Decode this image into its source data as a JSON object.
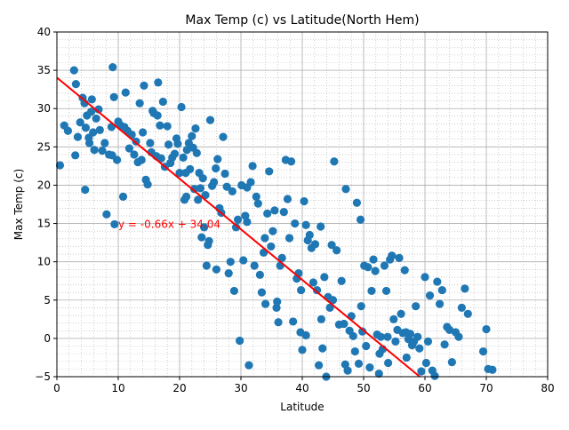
{
  "chart_data": {
    "type": "scatter",
    "title": "Max Temp (c) vs Latitude(North Hem)",
    "xlabel": "Latitude",
    "ylabel": "Max Temp (c)",
    "xlim": [
      0,
      80
    ],
    "ylim": [
      -5,
      40
    ],
    "xticks": [
      0,
      10,
      20,
      30,
      40,
      50,
      60,
      70,
      80
    ],
    "yticks": [
      -5,
      0,
      5,
      10,
      15,
      20,
      25,
      30,
      35,
      40
    ],
    "grid": true,
    "minor_grid": true,
    "colors": {
      "points": "#1f77b4",
      "regression": "#ff0000",
      "annotation": "#ff0000",
      "grid": "#b0b0b0"
    },
    "regression": {
      "slope": -0.66,
      "intercept": 34.04,
      "label": "y = -0.66x + 34.04",
      "label_x": 10,
      "label_y": 15
    },
    "points": [
      [
        0.5,
        22.6
      ],
      [
        1.2,
        27.8
      ],
      [
        1.8,
        27.1
      ],
      [
        2.8,
        35.0
      ],
      [
        3.1,
        33.2
      ],
      [
        3.4,
        26.3
      ],
      [
        3.0,
        23.9
      ],
      [
        3.8,
        28.2
      ],
      [
        4.2,
        31.4
      ],
      [
        4.5,
        30.7
      ],
      [
        4.6,
        19.4
      ],
      [
        4.7,
        27.5
      ],
      [
        4.9,
        29.1
      ],
      [
        5.2,
        26.2
      ],
      [
        5.3,
        25.5
      ],
      [
        5.6,
        29.6
      ],
      [
        5.7,
        31.2
      ],
      [
        5.9,
        26.9
      ],
      [
        6.1,
        24.6
      ],
      [
        6.4,
        28.7
      ],
      [
        6.8,
        29.9
      ],
      [
        7.0,
        27.2
      ],
      [
        7.4,
        24.5
      ],
      [
        7.8,
        25.5
      ],
      [
        8.1,
        16.2
      ],
      [
        8.5,
        24.0
      ],
      [
        8.9,
        27.6
      ],
      [
        9.0,
        23.9
      ],
      [
        9.1,
        35.4
      ],
      [
        9.3,
        31.5
      ],
      [
        9.4,
        14.9
      ],
      [
        9.8,
        23.3
      ],
      [
        10.0,
        28.3
      ],
      [
        10.4,
        27.8
      ],
      [
        10.8,
        18.5
      ],
      [
        11.0,
        27.6
      ],
      [
        11.2,
        32.1
      ],
      [
        11.5,
        27.1
      ],
      [
        11.8,
        24.8
      ],
      [
        12.2,
        26.6
      ],
      [
        12.6,
        24.0
      ],
      [
        12.9,
        25.7
      ],
      [
        13.2,
        23.0
      ],
      [
        13.5,
        30.7
      ],
      [
        13.8,
        23.3
      ],
      [
        14.0,
        26.9
      ],
      [
        14.2,
        33.0
      ],
      [
        14.5,
        20.7
      ],
      [
        14.8,
        20.1
      ],
      [
        15.2,
        25.5
      ],
      [
        15.4,
        24.3
      ],
      [
        15.6,
        29.7
      ],
      [
        15.8,
        29.4
      ],
      [
        16.2,
        23.8
      ],
      [
        16.4,
        29.1
      ],
      [
        16.5,
        33.4
      ],
      [
        16.8,
        27.8
      ],
      [
        17.0,
        23.5
      ],
      [
        17.3,
        30.9
      ],
      [
        17.6,
        22.4
      ],
      [
        18.0,
        27.7
      ],
      [
        18.2,
        25.3
      ],
      [
        18.5,
        22.9
      ],
      [
        18.8,
        23.6
      ],
      [
        19.2,
        24.1
      ],
      [
        19.5,
        26.1
      ],
      [
        19.7,
        25.4
      ],
      [
        20.0,
        21.6
      ],
      [
        20.3,
        30.2
      ],
      [
        20.6,
        23.6
      ],
      [
        20.8,
        18.1
      ],
      [
        21.0,
        21.6
      ],
      [
        21.2,
        24.6
      ],
      [
        21.5,
        25.5
      ],
      [
        21.7,
        22.1
      ],
      [
        22.0,
        26.4
      ],
      [
        22.2,
        24.9
      ],
      [
        22.4,
        19.5
      ],
      [
        22.6,
        27.4
      ],
      [
        22.8,
        24.2
      ],
      [
        23.0,
        18.1
      ],
      [
        23.2,
        21.6
      ],
      [
        23.4,
        19.6
      ],
      [
        23.6,
        13.2
      ],
      [
        23.8,
        20.9
      ],
      [
        24.0,
        14.5
      ],
      [
        24.2,
        18.7
      ],
      [
        24.4,
        9.5
      ],
      [
        24.6,
        12.2
      ],
      [
        24.8,
        12.7
      ],
      [
        25.0,
        28.5
      ],
      [
        25.3,
        19.9
      ],
      [
        25.6,
        20.4
      ],
      [
        25.9,
        22.2
      ],
      [
        26.2,
        23.4
      ],
      [
        26.5,
        17.0
      ],
      [
        26.8,
        16.4
      ],
      [
        27.1,
        26.3
      ],
      [
        27.4,
        21.5
      ],
      [
        27.7,
        19.8
      ],
      [
        28.0,
        8.5
      ],
      [
        28.3,
        10.0
      ],
      [
        28.6,
        19.2
      ],
      [
        28.9,
        6.2
      ],
      [
        29.2,
        14.5
      ],
      [
        29.5,
        15.5
      ],
      [
        29.8,
        -0.3
      ],
      [
        30.1,
        20.0
      ],
      [
        30.4,
        10.2
      ],
      [
        30.7,
        16.0
      ],
      [
        31.0,
        19.7
      ],
      [
        31.3,
        -3.5
      ],
      [
        31.6,
        20.4
      ],
      [
        31.9,
        22.5
      ],
      [
        32.2,
        9.5
      ],
      [
        32.5,
        18.5
      ],
      [
        32.8,
        17.6
      ],
      [
        33.1,
        8.3
      ],
      [
        33.4,
        6.0
      ],
      [
        33.7,
        11.2
      ],
      [
        34.0,
        4.5
      ],
      [
        34.3,
        16.3
      ],
      [
        34.6,
        21.8
      ],
      [
        34.9,
        12.0
      ],
      [
        35.2,
        14.0
      ],
      [
        35.5,
        16.7
      ],
      [
        35.8,
        4.0
      ],
      [
        36.1,
        2.1
      ],
      [
        36.4,
        9.5
      ],
      [
        36.7,
        10.5
      ],
      [
        37.0,
        16.5
      ],
      [
        37.3,
        23.3
      ],
      [
        37.6,
        18.2
      ],
      [
        37.9,
        13.1
      ],
      [
        38.2,
        23.1
      ],
      [
        38.5,
        2.2
      ],
      [
        38.8,
        15.0
      ],
      [
        39.1,
        7.8
      ],
      [
        39.4,
        8.5
      ],
      [
        39.7,
        0.8
      ],
      [
        40.0,
        -1.5
      ],
      [
        40.3,
        17.9
      ],
      [
        40.6,
        14.8
      ],
      [
        40.9,
        12.8
      ],
      [
        41.2,
        13.5
      ],
      [
        41.5,
        11.8
      ],
      [
        41.8,
        7.3
      ],
      [
        42.1,
        12.3
      ],
      [
        42.4,
        6.3
      ],
      [
        42.7,
        -3.5
      ],
      [
        43.0,
        14.6
      ],
      [
        43.3,
        -1.3
      ],
      [
        43.6,
        8.0
      ],
      [
        43.9,
        -5.0
      ],
      [
        44.2,
        5.4
      ],
      [
        44.5,
        4.0
      ],
      [
        44.8,
        12.2
      ],
      [
        45.2,
        23.1
      ],
      [
        45.6,
        11.5
      ],
      [
        46.0,
        1.8
      ],
      [
        46.4,
        7.5
      ],
      [
        46.8,
        1.9
      ],
      [
        47.1,
        19.5
      ],
      [
        47.4,
        -4.2
      ],
      [
        47.7,
        1.0
      ],
      [
        48.0,
        2.9
      ],
      [
        48.3,
        0.3
      ],
      [
        48.6,
        -1.7
      ],
      [
        48.9,
        17.7
      ],
      [
        49.2,
        -3.3
      ],
      [
        49.5,
        15.5
      ],
      [
        49.8,
        0.9
      ],
      [
        50.1,
        9.5
      ],
      [
        50.4,
        -1.0
      ],
      [
        50.7,
        9.3
      ],
      [
        51.0,
        -3.8
      ],
      [
        51.3,
        6.2
      ],
      [
        51.6,
        10.3
      ],
      [
        51.9,
        8.8
      ],
      [
        52.2,
        0.5
      ],
      [
        52.5,
        -4.6
      ],
      [
        52.8,
        0.2
      ],
      [
        53.1,
        -1.4
      ],
      [
        53.4,
        9.5
      ],
      [
        53.7,
        6.2
      ],
      [
        54.0,
        -3.2
      ],
      [
        54.3,
        10.3
      ],
      [
        54.6,
        10.8
      ],
      [
        54.9,
        2.5
      ],
      [
        55.2,
        -0.4
      ],
      [
        55.5,
        1.1
      ],
      [
        55.8,
        10.5
      ],
      [
        56.1,
        3.2
      ],
      [
        56.4,
        0.7
      ],
      [
        56.7,
        8.9
      ],
      [
        57.0,
        -2.5
      ],
      [
        57.3,
        -0.1
      ],
      [
        57.6,
        0.6
      ],
      [
        57.9,
        -0.9
      ],
      [
        58.2,
        -0.4
      ],
      [
        58.5,
        4.2
      ],
      [
        58.8,
        0.2
      ],
      [
        59.1,
        -1.3
      ],
      [
        59.4,
        -4.3
      ],
      [
        60.0,
        8.0
      ],
      [
        60.5,
        -0.4
      ],
      [
        60.8,
        5.6
      ],
      [
        61.2,
        -4.2
      ],
      [
        61.6,
        -4.9
      ],
      [
        62.0,
        7.4
      ],
      [
        62.4,
        4.5
      ],
      [
        62.8,
        6.3
      ],
      [
        63.2,
        -0.8
      ],
      [
        63.6,
        1.5
      ],
      [
        64.0,
        1.1
      ],
      [
        64.4,
        -3.1
      ],
      [
        65.0,
        0.8
      ],
      [
        65.5,
        0.2
      ],
      [
        66.0,
        4.0
      ],
      [
        66.5,
        6.5
      ],
      [
        67.0,
        3.2
      ],
      [
        69.5,
        -1.7
      ],
      [
        70.0,
        1.2
      ],
      [
        70.3,
        -4.0
      ],
      [
        71.0,
        -4.1
      ],
      [
        60.2,
        -3.2
      ],
      [
        52.6,
        -2.0
      ],
      [
        47.0,
        -3.4
      ],
      [
        40.6,
        0.4
      ],
      [
        35.9,
        4.8
      ],
      [
        26.0,
        9.0
      ],
      [
        21.1,
        18.5
      ],
      [
        31.0,
        15.2
      ],
      [
        33.9,
        13.1
      ],
      [
        39.8,
        6.3
      ],
      [
        43.1,
        2.5
      ],
      [
        45.0,
        5.0
      ],
      [
        49.6,
        4.2
      ],
      [
        53.9,
        0.2
      ],
      [
        56.9,
        0.8
      ]
    ]
  }
}
